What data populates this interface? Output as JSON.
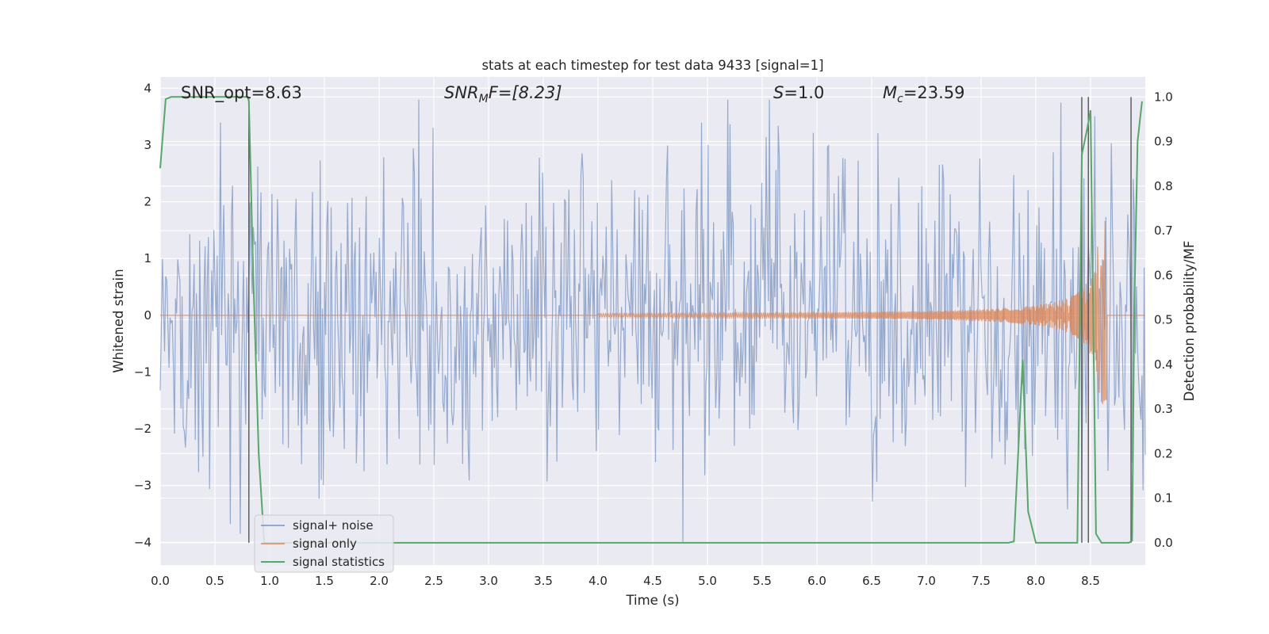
{
  "chart_data": {
    "type": "line",
    "title": "stats at each timestep for test data 9433 [signal=1]",
    "xlabel": "Time (s)",
    "ylabel": "Whitened strain",
    "ylabel_right": "Detection probability/MF",
    "xlim": [
      0.0,
      9.0
    ],
    "ylim": [
      -4.4,
      4.2
    ],
    "ylim_right": [
      -0.05,
      1.045
    ],
    "x_ticks": [
      "0.0",
      "0.5",
      "1.0",
      "1.5",
      "2.0",
      "2.5",
      "3.0",
      "3.5",
      "4.0",
      "4.5",
      "5.0",
      "5.5",
      "6.0",
      "6.5",
      "7.0",
      "7.5",
      "8.0",
      "8.5"
    ],
    "y_ticks": [
      "4",
      "3",
      "2",
      "1",
      "0",
      "−1",
      "−2",
      "−3",
      "−4"
    ],
    "y_ticks_right": [
      "1.0",
      "0.9",
      "0.8",
      "0.7",
      "0.6",
      "0.5",
      "0.4",
      "0.3",
      "0.2",
      "0.1",
      "0.0"
    ],
    "grid": true,
    "legend_position": "lower-left",
    "annotations": {
      "snr_opt": "SNR_opt=8.63",
      "snr_mf_prefix": "SNR",
      "snr_mf_sub": "M",
      "snr_mf_suffix": "F=[8.23]",
      "s_value_prefix": "S",
      "s_value_suffix": "=1.0",
      "mc_prefix": "M",
      "mc_sub": "c",
      "mc_suffix": "=23.59"
    },
    "series": [
      {
        "name": "signal+ noise",
        "color": "#4c72b0",
        "style": "noise",
        "approx_envelope": {
          "typical_abs": 1.6,
          "peak_max": 3.8,
          "peak_min": -4.0,
          "samples_shown": 900
        }
      },
      {
        "name": "signal only",
        "color": "#dd8452",
        "style": "chirp",
        "approx_amplitude": {
          "start_x": 4.0,
          "end_x": 8.65,
          "start_amp": 0.03,
          "peak_amp": 1.8,
          "peak_x": 8.62
        }
      },
      {
        "name": "signal statistics",
        "color": "#55a868",
        "axis": "right",
        "x": [
          0.0,
          0.05,
          0.1,
          0.8,
          0.81,
          0.85,
          0.9,
          0.95,
          7.75,
          7.8,
          7.88,
          7.93,
          8.0,
          8.38,
          8.42,
          8.47,
          8.5,
          8.55,
          8.6,
          8.85,
          8.88,
          8.9,
          8.93,
          8.97
        ],
        "values": [
          0.84,
          0.995,
          1.0,
          1.0,
          0.99,
          0.6,
          0.2,
          0.0,
          0.0,
          0.003,
          0.41,
          0.07,
          0.0,
          0.0,
          0.87,
          0.93,
          0.97,
          0.02,
          0.0,
          0.0,
          0.005,
          0.53,
          0.9,
          0.99
        ]
      }
    ],
    "vertical_markers_x": [
      0.81,
      8.42,
      8.48,
      8.87
    ]
  }
}
